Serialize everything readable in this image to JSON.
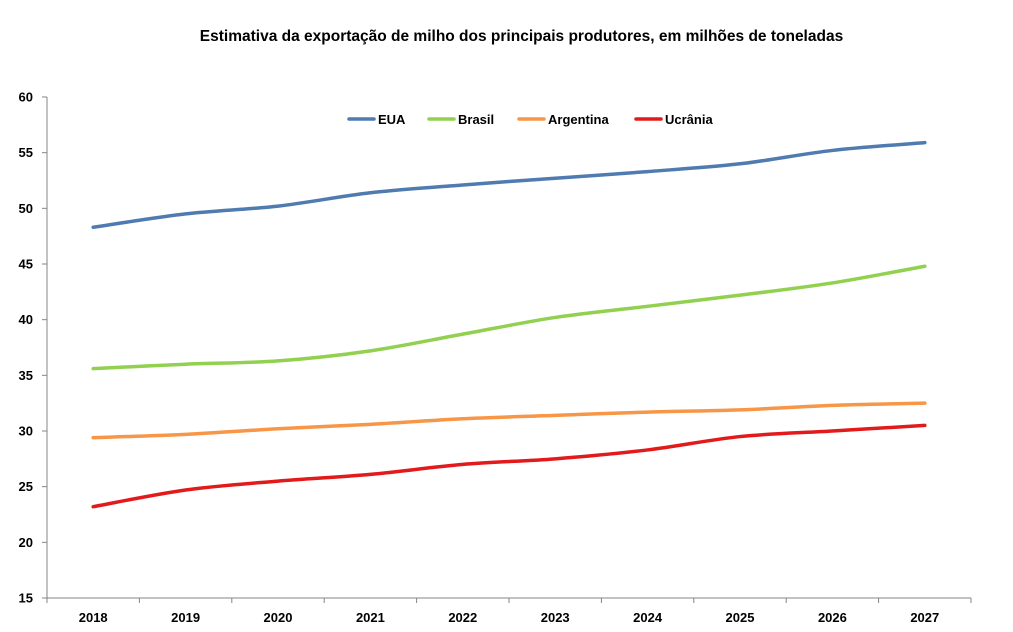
{
  "chart_data": {
    "type": "line",
    "title": "Estimativa da exportação de milho dos principais produtores, em milhões de toneladas",
    "categories": [
      "2018",
      "2019",
      "2020",
      "2021",
      "2022",
      "2023",
      "2024",
      "2025",
      "2026",
      "2027"
    ],
    "yticks": [
      "15",
      "20",
      "25",
      "30",
      "35",
      "40",
      "45",
      "50",
      "55",
      "60"
    ],
    "ylim": [
      15,
      60
    ],
    "grid": false,
    "legend": "top",
    "series": [
      {
        "name": "EUA",
        "color": "#4F7BB0",
        "values": [
          48.3,
          49.5,
          50.2,
          51.4,
          52.1,
          52.7,
          53.3,
          54.0,
          55.2,
          55.9
        ]
      },
      {
        "name": "Brasil",
        "color": "#92D050",
        "values": [
          35.6,
          36.0,
          36.3,
          37.2,
          38.7,
          40.2,
          41.2,
          42.2,
          43.3,
          44.8
        ]
      },
      {
        "name": "Argentina",
        "color": "#F79646",
        "values": [
          29.4,
          29.7,
          30.2,
          30.6,
          31.1,
          31.4,
          31.7,
          31.9,
          32.3,
          32.5
        ]
      },
      {
        "name": "Ucrânia",
        "color": "#E31A1C",
        "values": [
          23.2,
          24.7,
          25.5,
          26.1,
          27.0,
          27.5,
          28.3,
          29.5,
          30.0,
          30.5
        ]
      }
    ]
  }
}
